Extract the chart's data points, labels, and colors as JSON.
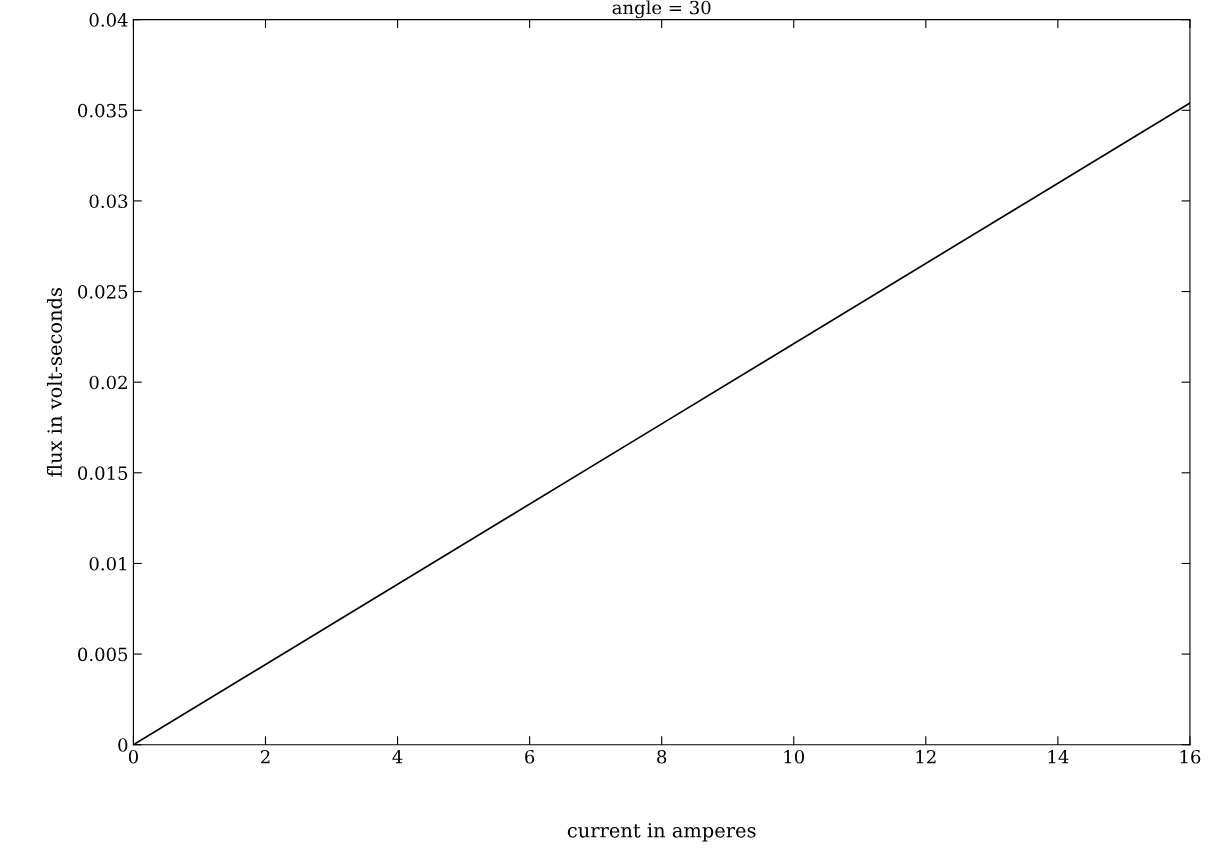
{
  "chart_data": {
    "type": "line",
    "title": "angle = 30",
    "xlabel": "current in amperes",
    "ylabel": "flux in volt-seconds",
    "x": [
      0,
      8,
      16
    ],
    "series": [
      {
        "color": "#000000",
        "values": [
          0,
          0.0177,
          0.0354
        ]
      }
    ],
    "xlim": [
      0,
      16
    ],
    "xticks": [
      0,
      2,
      4,
      6,
      8,
      10,
      12,
      14,
      16
    ],
    "ylim": [
      0,
      0.04
    ],
    "yticks": [
      0,
      0.005,
      0.01,
      0.015,
      0.02,
      0.025,
      0.03,
      0.035,
      0.04
    ],
    "grid": false,
    "legend": false,
    "marker": "none",
    "line_style": "solid"
  }
}
